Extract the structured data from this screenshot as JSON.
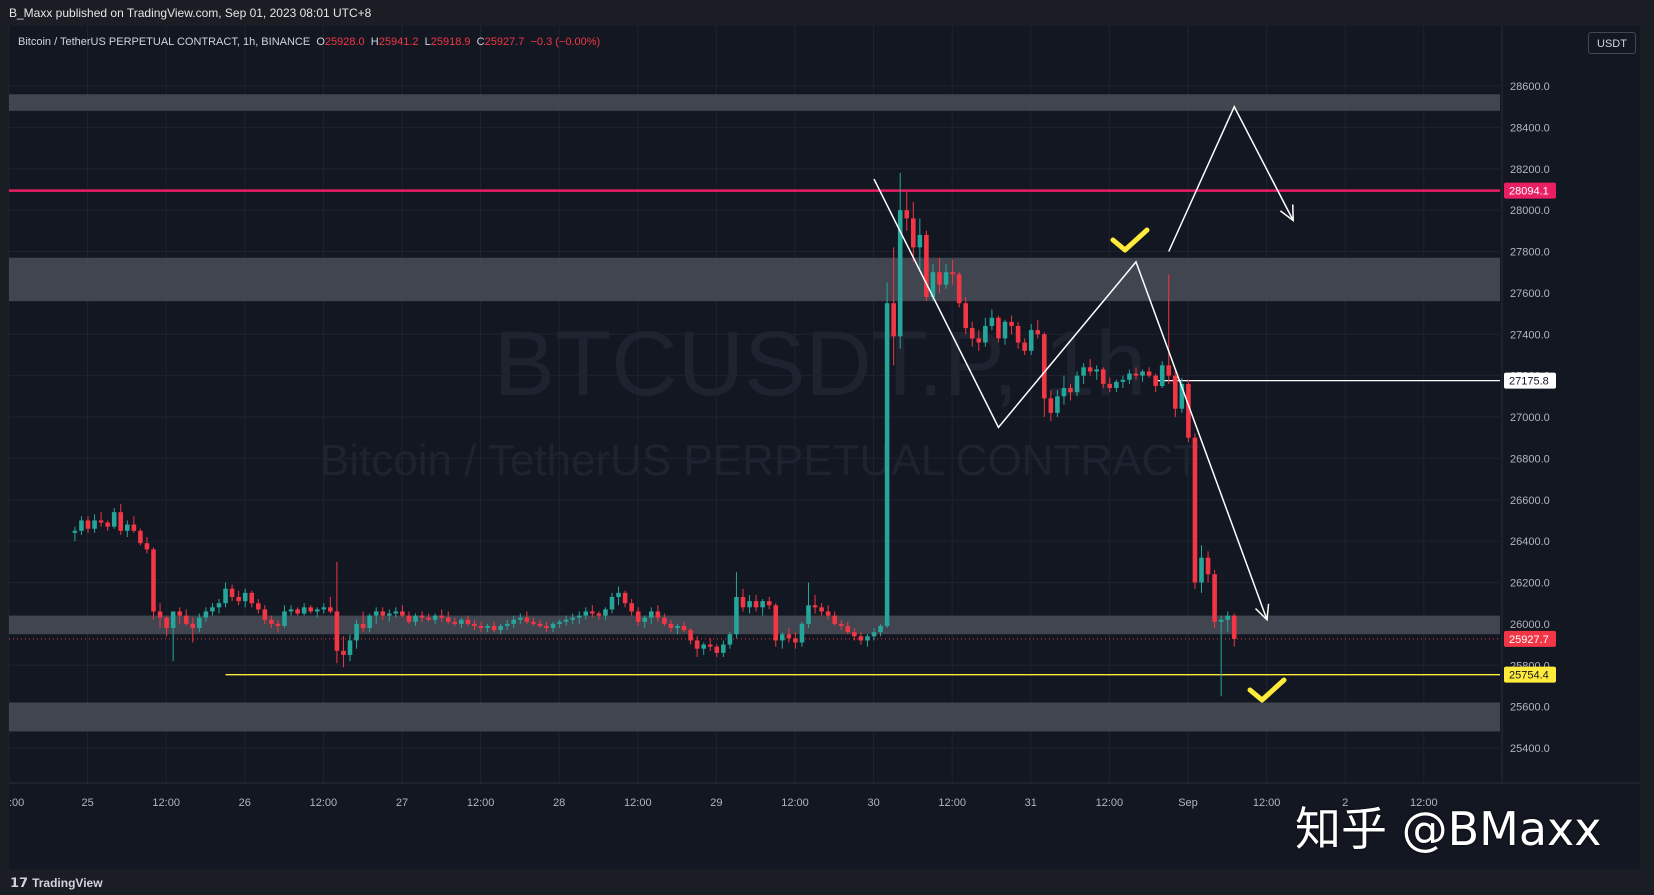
{
  "header": {
    "published_by": "B_Maxx published on TradingView.com, Sep 01, 2023 08:01 UTC+8"
  },
  "legend": {
    "symbol": "Bitcoin / TetherUS PERPETUAL CONTRACT, 1h, BINANCE",
    "o_label": "O",
    "o_value": "25928.0",
    "h_label": "H",
    "h_value": "25941.2",
    "l_label": "L",
    "l_value": "25918.9",
    "c_label": "C",
    "c_value": "25927.7",
    "change": "−0.3 (−0.00%)"
  },
  "currency_button": "USDT",
  "watermark": {
    "line1": "BTCUSDT.P, 1h",
    "line2": "Bitcoin / TetherUS PERPETUAL CONTRACT"
  },
  "footer": {
    "brand": "TradingView"
  },
  "overlay_user": "知乎 @BMaxx",
  "colors": {
    "background": "#131722",
    "up": "#26a69a",
    "down": "#f23645",
    "resistance_line": "#e91e63",
    "yellow_line": "#ffeb3b",
    "zone": "#4a4d57"
  },
  "chart_data": {
    "type": "candlestick",
    "y_axis": {
      "min": 25360,
      "max": 28780,
      "ticks": [
        "28600.0",
        "28400.0",
        "28200.0",
        "28000.0",
        "27800.0",
        "27600.0",
        "27400.0",
        "27200.0",
        "27000.0",
        "26800.0",
        "26600.0",
        "26400.0",
        "26200.0",
        "26000.0",
        "25800.0",
        "25600.0",
        "25400.0"
      ]
    },
    "x_axis": {
      "ticks": [
        ":00",
        "25",
        "12:00",
        "26",
        "12:00",
        "27",
        "12:00",
        "28",
        "12:00",
        "29",
        "12:00",
        "30",
        "12:00",
        "31",
        "12:00",
        "Sep",
        "12:00",
        "2",
        "12:00"
      ]
    },
    "price_labels": [
      {
        "value": "28094.1",
        "price": 28094.1,
        "color": "#e91e63",
        "text_color": "#ffffff"
      },
      {
        "value": "27175.8",
        "price": 27175.8,
        "color": "#ffffff",
        "text_color": "#131722"
      },
      {
        "value": "25927.7",
        "price": 25927.7,
        "color": "#f23645",
        "text_color": "#ffffff"
      },
      {
        "value": "25754.4",
        "price": 25754.4,
        "color": "#ffeb3b",
        "text_color": "#131722"
      }
    ],
    "horizontal_lines": [
      {
        "price": 28094.1,
        "color": "#e91e63",
        "from": "start"
      },
      {
        "price": 27175.8,
        "color": "#ffffff",
        "from": "Aug 31 19:00"
      },
      {
        "price": 25754.4,
        "color": "#ffeb3b",
        "from": "Aug 25 21:00"
      }
    ],
    "zones": [
      {
        "from": 28480,
        "to": 28560
      },
      {
        "from": 27560,
        "to": 27770
      },
      {
        "from": 25950,
        "to": 26040
      },
      {
        "from": 25480,
        "to": 25620
      }
    ],
    "candles_note": "Hourly OHLC approximated from image, Aug 24 ~22:00 to Sep 1 ~07:00",
    "candles": [
      [
        26440,
        26470,
        26400,
        26450
      ],
      [
        26450,
        26520,
        26430,
        26500
      ],
      [
        26500,
        26520,
        26440,
        26460
      ],
      [
        26460,
        26530,
        26440,
        26500
      ],
      [
        26500,
        26540,
        26470,
        26490
      ],
      [
        26490,
        26500,
        26450,
        26470
      ],
      [
        26470,
        26560,
        26460,
        26540
      ],
      [
        26540,
        26580,
        26430,
        26450
      ],
      [
        26450,
        26500,
        26420,
        26480
      ],
      [
        26480,
        26520,
        26440,
        26450
      ],
      [
        26450,
        26460,
        26380,
        26390
      ],
      [
        26390,
        26420,
        26340,
        26360
      ],
      [
        26360,
        26370,
        26020,
        26060
      ],
      [
        26060,
        26100,
        25980,
        26030
      ],
      [
        26030,
        26040,
        25940,
        25980
      ],
      [
        25980,
        26060,
        25820,
        26060
      ],
      [
        26060,
        26080,
        26000,
        26040
      ],
      [
        26040,
        26070,
        25990,
        26000
      ],
      [
        26000,
        26030,
        25910,
        25980
      ],
      [
        25980,
        26050,
        25960,
        26030
      ],
      [
        26030,
        26080,
        26010,
        26060
      ],
      [
        26060,
        26100,
        26040,
        26080
      ],
      [
        26080,
        26120,
        26050,
        26100
      ],
      [
        26100,
        26200,
        26080,
        26170
      ],
      [
        26170,
        26190,
        26110,
        26130
      ],
      [
        26130,
        26160,
        26090,
        26110
      ],
      [
        26110,
        26170,
        26080,
        26150
      ],
      [
        26150,
        26160,
        26080,
        26100
      ],
      [
        26100,
        26120,
        26050,
        26070
      ],
      [
        26070,
        26090,
        26000,
        26020
      ],
      [
        26020,
        26040,
        25980,
        26000
      ],
      [
        26000,
        26020,
        25960,
        25990
      ],
      [
        25990,
        26090,
        25980,
        26060
      ],
      [
        26060,
        26090,
        26040,
        26070
      ],
      [
        26070,
        26080,
        26040,
        26050
      ],
      [
        26050,
        26100,
        26040,
        26080
      ],
      [
        26080,
        26090,
        26050,
        26060
      ],
      [
        26060,
        26080,
        26030,
        26070
      ],
      [
        26070,
        26100,
        26050,
        26080
      ],
      [
        26080,
        26130,
        26050,
        26060
      ],
      [
        26060,
        26300,
        25810,
        25870
      ],
      [
        25870,
        25940,
        25790,
        25850
      ],
      [
        25850,
        25950,
        25820,
        25920
      ],
      [
        25920,
        26020,
        25880,
        26000
      ],
      [
        26000,
        26060,
        25960,
        25980
      ],
      [
        25980,
        26050,
        25960,
        26040
      ],
      [
        26040,
        26080,
        26000,
        26060
      ],
      [
        26060,
        26080,
        26020,
        26040
      ],
      [
        26040,
        26070,
        26010,
        26050
      ],
      [
        26050,
        26080,
        26030,
        26060
      ],
      [
        26060,
        26090,
        26030,
        26040
      ],
      [
        26040,
        26060,
        26000,
        26010
      ],
      [
        26010,
        26050,
        25990,
        26040
      ],
      [
        26040,
        26060,
        26010,
        26030
      ],
      [
        26030,
        26050,
        26010,
        26020
      ],
      [
        26020,
        26050,
        26000,
        26040
      ],
      [
        26040,
        26070,
        26010,
        26030
      ],
      [
        26030,
        26060,
        26000,
        26010
      ],
      [
        26010,
        26030,
        25990,
        26000
      ],
      [
        26000,
        26030,
        25980,
        26020
      ],
      [
        26020,
        26040,
        25990,
        26000
      ],
      [
        26000,
        26020,
        25970,
        25990
      ],
      [
        25990,
        26010,
        25960,
        25980
      ],
      [
        25980,
        26000,
        25960,
        25990
      ],
      [
        25990,
        26010,
        25960,
        25970
      ],
      [
        25970,
        26000,
        25950,
        25990
      ],
      [
        25990,
        26020,
        25970,
        26000
      ],
      [
        26000,
        26040,
        25980,
        26020
      ],
      [
        26020,
        26050,
        26000,
        26030
      ],
      [
        26030,
        26060,
        26000,
        26010
      ],
      [
        26010,
        26030,
        25990,
        26000
      ],
      [
        26000,
        26020,
        25980,
        25990
      ],
      [
        25990,
        26010,
        25960,
        25980
      ],
      [
        25980,
        26010,
        25960,
        26000
      ],
      [
        26000,
        26020,
        25980,
        26010
      ],
      [
        26010,
        26040,
        25990,
        26020
      ],
      [
        26020,
        26050,
        26000,
        26030
      ],
      [
        26030,
        26060,
        26000,
        26040
      ],
      [
        26040,
        26080,
        26020,
        26060
      ],
      [
        26060,
        26090,
        26030,
        26050
      ],
      [
        26050,
        26060,
        26020,
        26040
      ],
      [
        26040,
        26080,
        26020,
        26070
      ],
      [
        26070,
        26150,
        26050,
        26130
      ],
      [
        26130,
        26180,
        26090,
        26150
      ],
      [
        26150,
        26160,
        26080,
        26100
      ],
      [
        26100,
        26120,
        26040,
        26060
      ],
      [
        26060,
        26080,
        25990,
        26010
      ],
      [
        26010,
        26040,
        25980,
        26030
      ],
      [
        26030,
        26080,
        26000,
        26060
      ],
      [
        26060,
        26090,
        26010,
        26030
      ],
      [
        26030,
        26050,
        25990,
        26000
      ],
      [
        26000,
        26020,
        25960,
        25980
      ],
      [
        25980,
        26000,
        25950,
        25990
      ],
      [
        25990,
        26010,
        25960,
        25970
      ],
      [
        25970,
        25980,
        25900,
        25920
      ],
      [
        25920,
        25940,
        25840,
        25880
      ],
      [
        25880,
        25910,
        25850,
        25900
      ],
      [
        25900,
        25930,
        25870,
        25890
      ],
      [
        25890,
        25900,
        25840,
        25860
      ],
      [
        25860,
        25920,
        25840,
        25900
      ],
      [
        25900,
        25960,
        25880,
        25950
      ],
      [
        25950,
        26250,
        25930,
        26130
      ],
      [
        26130,
        26170,
        26060,
        26080
      ],
      [
        26080,
        26140,
        26050,
        26110
      ],
      [
        26110,
        26140,
        26060,
        26080
      ],
      [
        26080,
        26120,
        26040,
        26110
      ],
      [
        26110,
        26130,
        26070,
        26090
      ],
      [
        26090,
        26100,
        25890,
        25920
      ],
      [
        25920,
        25960,
        25880,
        25950
      ],
      [
        25950,
        25980,
        25910,
        25930
      ],
      [
        25930,
        25960,
        25880,
        25910
      ],
      [
        25910,
        26010,
        25890,
        26000
      ],
      [
        26000,
        26200,
        25980,
        26090
      ],
      [
        26090,
        26140,
        26050,
        26080
      ],
      [
        26080,
        26100,
        26040,
        26060
      ],
      [
        26060,
        26090,
        26020,
        26040
      ],
      [
        26040,
        26060,
        25990,
        26000
      ],
      [
        26000,
        26020,
        25970,
        25990
      ],
      [
        25990,
        26010,
        25950,
        25960
      ],
      [
        25960,
        25980,
        25920,
        25940
      ],
      [
        25940,
        25960,
        25900,
        25920
      ],
      [
        25920,
        25950,
        25890,
        25940
      ],
      [
        25940,
        25980,
        25920,
        25960
      ],
      [
        25960,
        26000,
        25940,
        25990
      ],
      [
        25990,
        27650,
        25980,
        27550
      ],
      [
        27550,
        27820,
        27250,
        27390
      ],
      [
        27390,
        28180,
        27330,
        28000
      ],
      [
        28000,
        28090,
        27900,
        27960
      ],
      [
        27960,
        28040,
        27750,
        27820
      ],
      [
        27820,
        27960,
        27700,
        27880
      ],
      [
        27880,
        27900,
        27560,
        27580
      ],
      [
        27580,
        27740,
        27560,
        27700
      ],
      [
        27700,
        27770,
        27600,
        27640
      ],
      [
        27640,
        27740,
        27620,
        27700
      ],
      [
        27700,
        27760,
        27640,
        27690
      ],
      [
        27690,
        27700,
        27530,
        27550
      ],
      [
        27550,
        27580,
        27400,
        27430
      ],
      [
        27430,
        27460,
        27340,
        27380
      ],
      [
        27380,
        27420,
        27320,
        27360
      ],
      [
        27360,
        27480,
        27340,
        27440
      ],
      [
        27440,
        27520,
        27420,
        27480
      ],
      [
        27480,
        27490,
        27360,
        27380
      ],
      [
        27380,
        27470,
        27350,
        27460
      ],
      [
        27460,
        27490,
        27400,
        27440
      ],
      [
        27440,
        27460,
        27330,
        27360
      ],
      [
        27360,
        27380,
        27300,
        27320
      ],
      [
        27320,
        27450,
        27300,
        27420
      ],
      [
        27420,
        27470,
        27380,
        27400
      ],
      [
        27400,
        27410,
        27000,
        27090
      ],
      [
        27090,
        27130,
        26980,
        27020
      ],
      [
        27020,
        27130,
        27000,
        27100
      ],
      [
        27100,
        27200,
        27060,
        27140
      ],
      [
        27140,
        27160,
        27080,
        27120
      ],
      [
        27120,
        27220,
        27100,
        27200
      ],
      [
        27200,
        27260,
        27160,
        27240
      ],
      [
        27240,
        27280,
        27200,
        27220
      ],
      [
        27220,
        27250,
        27180,
        27230
      ],
      [
        27230,
        27240,
        27140,
        27160
      ],
      [
        27160,
        27190,
        27120,
        27140
      ],
      [
        27140,
        27180,
        27120,
        27170
      ],
      [
        27170,
        27200,
        27140,
        27180
      ],
      [
        27180,
        27230,
        27160,
        27210
      ],
      [
        27210,
        27240,
        27180,
        27200
      ],
      [
        27200,
        27230,
        27170,
        27220
      ],
      [
        27220,
        27240,
        27190,
        27200
      ],
      [
        27200,
        27210,
        27120,
        27150
      ],
      [
        27150,
        27270,
        27140,
        27250
      ],
      [
        27250,
        27690,
        27160,
        27200
      ],
      [
        27200,
        27220,
        27000,
        27040
      ],
      [
        27040,
        27190,
        27020,
        27160
      ],
      [
        27160,
        27180,
        26880,
        26900
      ],
      [
        26900,
        26920,
        26170,
        26200
      ],
      [
        26200,
        26380,
        26150,
        26320
      ],
      [
        26320,
        26350,
        26200,
        26240
      ],
      [
        26240,
        26260,
        25980,
        26010
      ],
      [
        26010,
        26040,
        25650,
        26020
      ],
      [
        26020,
        26060,
        25960,
        26040
      ],
      [
        26040,
        26050,
        25890,
        25927.7
      ]
    ],
    "annotations": [
      {
        "type": "polyline",
        "color": "#ffffff",
        "points": [
          [
            "Aug 30 00:00",
            28150
          ],
          [
            "Aug 30 19:00",
            26950
          ],
          [
            "Aug 31 16:00",
            27750
          ],
          [
            "Sep 1 12:00",
            26020
          ]
        ]
      },
      {
        "type": "polyline",
        "color": "#ffffff",
        "points": [
          [
            "Aug 31 21:00",
            27800
          ],
          [
            "Sep 1 07:00",
            28500
          ],
          [
            "Sep 1 16:00",
            27950
          ]
        ]
      },
      {
        "type": "checkmark",
        "color": "#ffeb3b"
      },
      {
        "type": "checkmark",
        "color": "#ffeb3b"
      }
    ]
  }
}
